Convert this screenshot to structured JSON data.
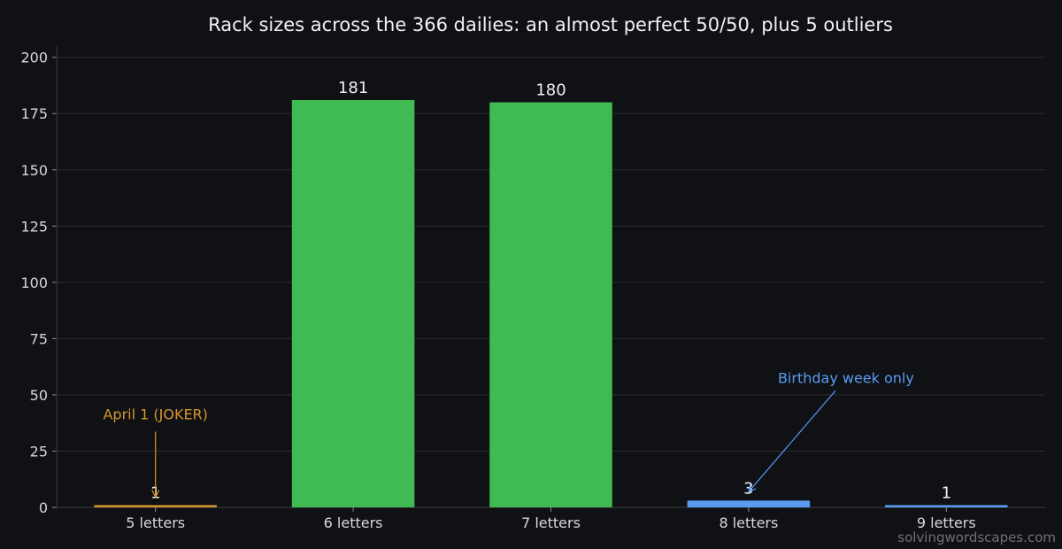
{
  "chart_data": {
    "type": "bar",
    "title": "Rack sizes across the 366 dailies: an almost perfect 50/50, plus 5 outliers",
    "xlabel": "",
    "ylabel": "",
    "categories": [
      "5 letters",
      "6 letters",
      "7 letters",
      "8 letters",
      "9 letters"
    ],
    "values": [
      1,
      181,
      180,
      3,
      1
    ],
    "bar_colors": [
      "#d4962c",
      "#40ba52",
      "#40ba52",
      "#5b9cf2",
      "#5b9cf2"
    ],
    "ylim": [
      0,
      205
    ],
    "yticks": [
      0,
      25,
      50,
      75,
      100,
      125,
      150,
      175,
      200
    ],
    "grid": true,
    "annotations": [
      {
        "text": "April 1 (JOKER)",
        "category": "5 letters",
        "value": 1,
        "color": "#d4962c"
      },
      {
        "text": "Birthday week only",
        "category": "8 letters",
        "value": 3,
        "color": "#5b9cf2"
      }
    ]
  },
  "watermark": "solvingwordscapes.com",
  "colors": {
    "background": "#101115",
    "grid": "#2a2c33",
    "axis": "#3a3c44",
    "text": "#f2f2f2"
  }
}
